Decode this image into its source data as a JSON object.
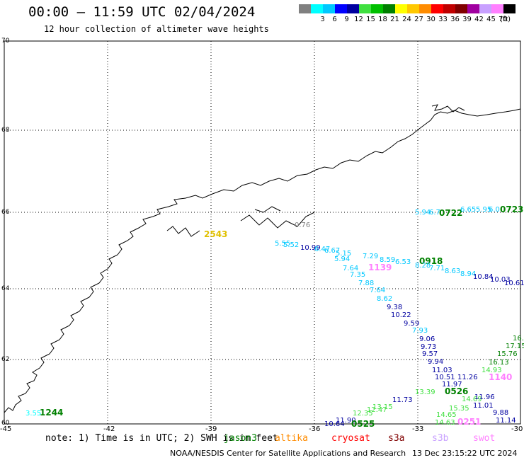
{
  "header": {
    "title": "00:00 – 11:59 UTC 02/04/2024",
    "subtitle": "12 hour collection of altimeter wave heights"
  },
  "legend": {
    "unit": "(ft)",
    "items": [
      {
        "label": "",
        "color": "#808080"
      },
      {
        "label": "3",
        "color": "#00ffff"
      },
      {
        "label": "6",
        "color": "#00c8ff"
      },
      {
        "label": "9",
        "color": "#0000ff"
      },
      {
        "label": "12",
        "color": "#0000a0"
      },
      {
        "label": "15",
        "color": "#40e040"
      },
      {
        "label": "18",
        "color": "#00c000"
      },
      {
        "label": "21",
        "color": "#008000"
      },
      {
        "label": "24",
        "color": "#ffff00"
      },
      {
        "label": "27",
        "color": "#ffc800"
      },
      {
        "label": "30",
        "color": "#ff8c00"
      },
      {
        "label": "33",
        "color": "#ff0000"
      },
      {
        "label": "36",
        "color": "#c00000"
      },
      {
        "label": "39",
        "color": "#800000"
      },
      {
        "label": "42",
        "color": "#a000a0"
      },
      {
        "label": "45",
        "color": "#c8a0ff"
      },
      {
        "label": "70",
        "color": "#ff80ff"
      },
      {
        "label": "",
        "color": "#000000"
      }
    ]
  },
  "map": {
    "lon_labels": [
      "-45",
      "-42",
      "-39",
      "-36",
      "-33",
      "-30"
    ],
    "lat_labels": [
      "60",
      "62",
      "64",
      "66",
      "68",
      "70"
    ],
    "wave_labels": [
      {
        "t": "5.94",
        "c": "#00c8ff"
      },
      {
        "t": "6.7",
        "c": "#00c8ff"
      },
      {
        "t": "0722",
        "c": "#008000"
      },
      {
        "t": "6.65",
        "c": "#00c8ff"
      },
      {
        "t": "5.95",
        "c": "#00c8ff"
      },
      {
        "t": "6.0",
        "c": "#00c8ff"
      },
      {
        "t": "0723",
        "c": "#008000"
      },
      {
        "t": "2543",
        "c": "#e0c000"
      },
      {
        "t": "0.76",
        "c": "#808080"
      },
      {
        "t": "5.55",
        "c": "#00c8ff"
      },
      {
        "t": "5.52",
        "c": "#00c8ff"
      },
      {
        "t": "10.99",
        "c": "#0000a0"
      },
      {
        "t": "6.47",
        "c": "#00c8ff"
      },
      {
        "t": "6.67",
        "c": "#00c8ff"
      },
      {
        "t": "5.15",
        "c": "#00c8ff"
      },
      {
        "t": "7.29",
        "c": "#00c8ff"
      },
      {
        "t": "5.94",
        "c": "#00c8ff"
      },
      {
        "t": "8.59",
        "c": "#00c8ff"
      },
      {
        "t": "6.53",
        "c": "#00c8ff"
      },
      {
        "t": "0918",
        "c": "#008000"
      },
      {
        "t": "8.28",
        "c": "#00c8ff"
      },
      {
        "t": "7.71",
        "c": "#00c8ff"
      },
      {
        "t": "8.63",
        "c": "#00c8ff"
      },
      {
        "t": "8.94",
        "c": "#00c8ff"
      },
      {
        "t": "10.84",
        "c": "#0000a0"
      },
      {
        "t": "10.03",
        "c": "#0000a0"
      },
      {
        "t": "10.61",
        "c": "#0000a0"
      },
      {
        "t": "7.64",
        "c": "#00c8ff"
      },
      {
        "t": "1139",
        "c": "#ff80ff"
      },
      {
        "t": "7.35",
        "c": "#00c8ff"
      },
      {
        "t": "7.88",
        "c": "#00c8ff"
      },
      {
        "t": "7.64",
        "c": "#00c8ff"
      },
      {
        "t": "8.62",
        "c": "#00c8ff"
      },
      {
        "t": "9.38",
        "c": "#0000a0"
      },
      {
        "t": "10.22",
        "c": "#0000a0"
      },
      {
        "t": "9.59",
        "c": "#0000a0"
      },
      {
        "t": "7.93",
        "c": "#00c8ff"
      },
      {
        "t": "9.06",
        "c": "#0000a0"
      },
      {
        "t": "9.73",
        "c": "#0000a0"
      },
      {
        "t": "9.57",
        "c": "#0000a0"
      },
      {
        "t": "9.94",
        "c": "#0000a0"
      },
      {
        "t": "11.03",
        "c": "#0000a0"
      },
      {
        "t": "10.51",
        "c": "#0000a0"
      },
      {
        "t": "11.26",
        "c": "#0000a0"
      },
      {
        "t": "11.97",
        "c": "#0000a0"
      },
      {
        "t": "0526",
        "c": "#008000"
      },
      {
        "t": "1140",
        "c": "#ff80ff"
      },
      {
        "t": "16.",
        "c": "#008000"
      },
      {
        "t": "17.15",
        "c": "#008000"
      },
      {
        "t": "15.76",
        "c": "#008000"
      },
      {
        "t": "16.13",
        "c": "#008000"
      },
      {
        "t": "14.93",
        "c": "#40e040"
      },
      {
        "t": "13.39",
        "c": "#40e040"
      },
      {
        "t": "14.69",
        "c": "#40e040"
      },
      {
        "t": "15.35",
        "c": "#40e040"
      },
      {
        "t": "14.65",
        "c": "#40e040"
      },
      {
        "t": "14.63",
        "c": "#40e040"
      },
      {
        "t": "11.96",
        "c": "#0000a0"
      },
      {
        "t": "11.01",
        "c": "#0000a0"
      },
      {
        "t": "9.88",
        "c": "#0000a0"
      },
      {
        "t": "11.14",
        "c": "#0000a0"
      },
      {
        "t": "11.73",
        "c": "#0000a0"
      },
      {
        "t": "13.15",
        "c": "#40e040"
      },
      {
        "t": "12.47",
        "c": "#40e040"
      },
      {
        "t": "12.35",
        "c": "#40e040"
      },
      {
        "t": "11.90",
        "c": "#0000a0"
      },
      {
        "t": "10.64",
        "c": "#0000a0"
      },
      {
        "t": "0525",
        "c": "#008000"
      },
      {
        "t": "0251",
        "c": "#ff80ff"
      },
      {
        "t": "3.55",
        "c": "#00ffff"
      },
      {
        "t": "1244",
        "c": "#008000"
      }
    ]
  },
  "footer": {
    "note": "note: 1) Time is in UTC; 2) SWH is in feet",
    "satellites": [
      {
        "name": "jason3",
        "color": "#008000"
      },
      {
        "name": "altika",
        "color": "#ff8c00"
      },
      {
        "name": "cryosat",
        "color": "#ff0000"
      },
      {
        "name": "s3a",
        "color": "#800000"
      },
      {
        "name": "s3b",
        "color": "#c8a0ff"
      },
      {
        "name": "swot",
        "color": "#ff80ff"
      }
    ],
    "credit": "NOAA/NESDIS Center for Satellite Applications and Research",
    "timestamp": "13 Dec 23:15:22 UTC 2024"
  }
}
